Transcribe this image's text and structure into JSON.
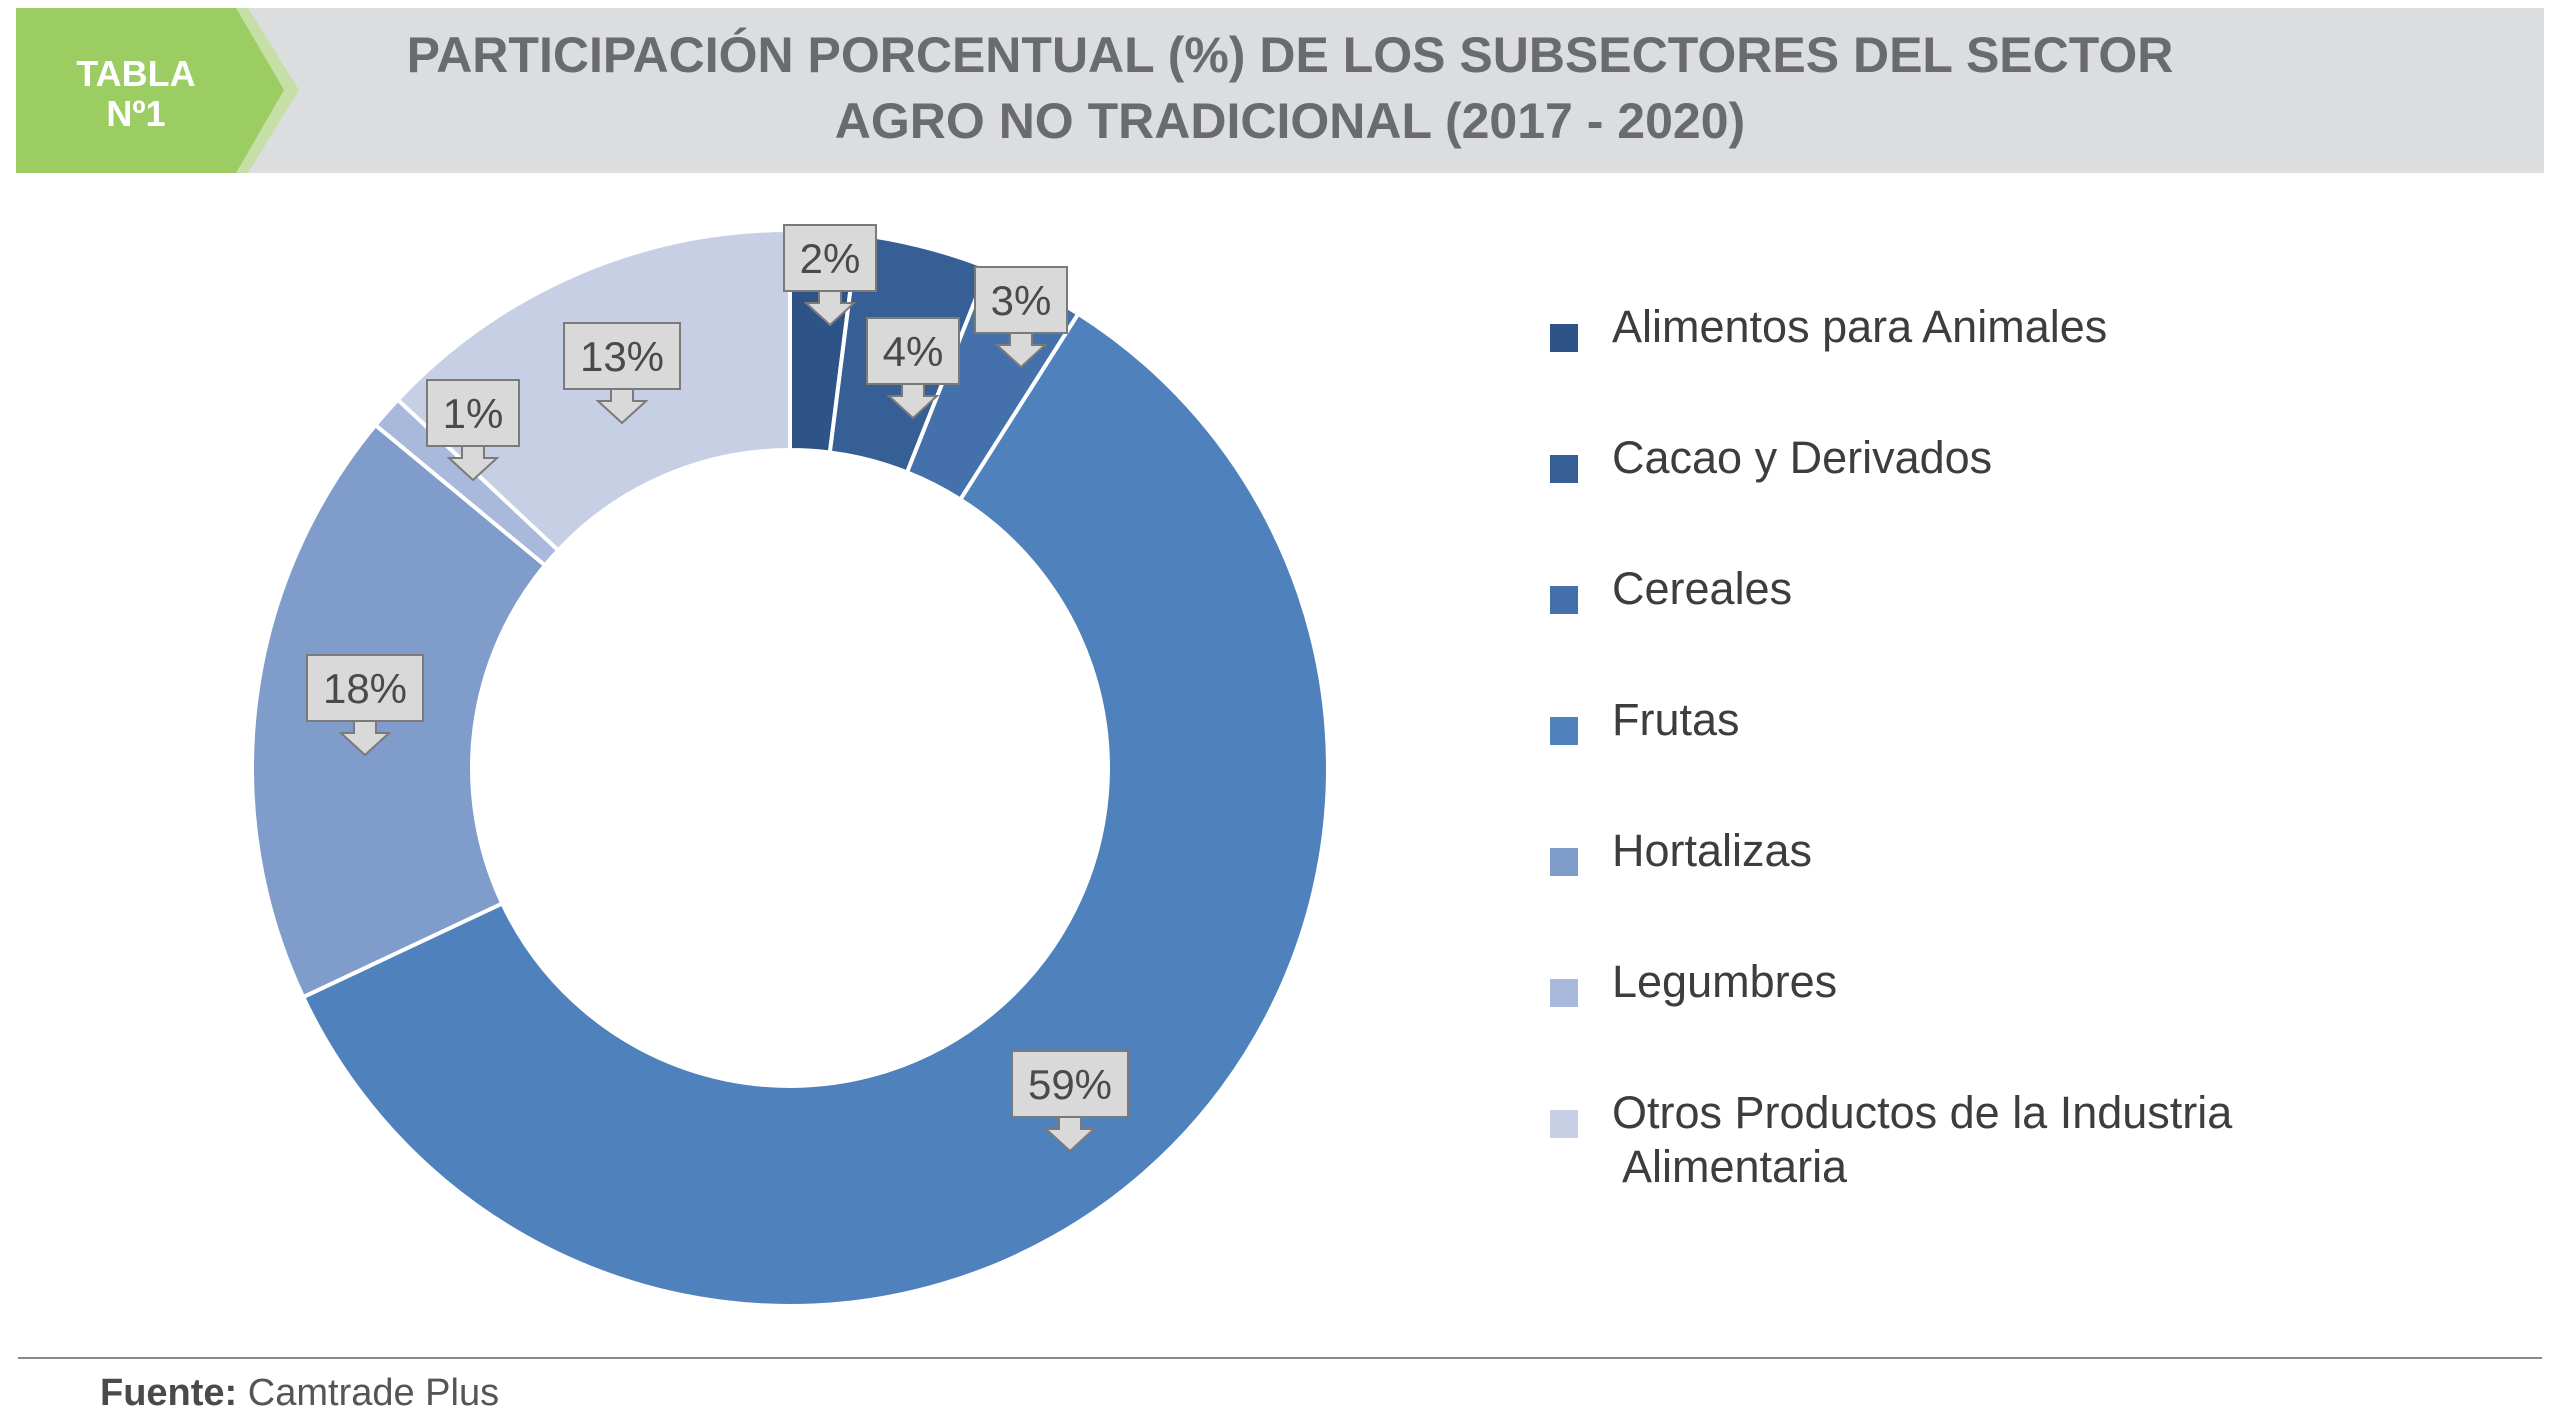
{
  "header": {
    "badge_line1": "TABLA",
    "badge_line2": "Nº1",
    "title_line1": "PARTICIPACIÓN PORCENTUAL (%) DE LOS SUBSECTORES DEL SECTOR",
    "title_line2": "AGRO NO TRADICIONAL (2017 - 2020)"
  },
  "chart_data": {
    "type": "pie",
    "style": "donut",
    "title": "PARTICIPACIÓN PORCENTUAL (%) DE LOS SUBSECTORES DEL SECTOR AGRO NO TRADICIONAL (2017 - 2020)",
    "unit": "%",
    "legend_position": "right",
    "slices": [
      {
        "name": "Alimentos para Animales",
        "value": 2,
        "label": "2%",
        "color": "#2e5387"
      },
      {
        "name": "Cacao y Derivados",
        "value": 4,
        "label": "4%",
        "color": "#365f96"
      },
      {
        "name": "Cereales",
        "value": 3,
        "label": "3%",
        "color": "#4470ab"
      },
      {
        "name": "Frutas",
        "value": 59,
        "label": "59%",
        "color": "#4f81bd"
      },
      {
        "name": "Hortalizas",
        "value": 18,
        "label": "18%",
        "color": "#7f9ccb"
      },
      {
        "name": "Legumbres",
        "value": 1,
        "label": "1%",
        "color": "#a8b9dc"
      },
      {
        "name": "Otros Productos de la Industria Alimentaria",
        "value": 13,
        "label": "13%",
        "color": "#c6cfe4"
      }
    ]
  },
  "legend": {
    "items": [
      {
        "line1": "Alimentos para Animales",
        "line2": ""
      },
      {
        "line1": "Cacao y Derivados",
        "line2": ""
      },
      {
        "line1": "Cereales",
        "line2": ""
      },
      {
        "line1": "Frutas",
        "line2": ""
      },
      {
        "line1": "Hortalizas",
        "line2": ""
      },
      {
        "line1": "Legumbres",
        "line2": ""
      },
      {
        "line1": "Otros Productos de la Industria",
        "line2": "Alimentaria"
      }
    ]
  },
  "footer": {
    "source_label": "Fuente:",
    "source_value": "Camtrade Plus"
  },
  "colors": {
    "badge_green": "#9ccd63",
    "header_gray": "#dcdddf",
    "callout_fill": "#d9d9d9"
  }
}
